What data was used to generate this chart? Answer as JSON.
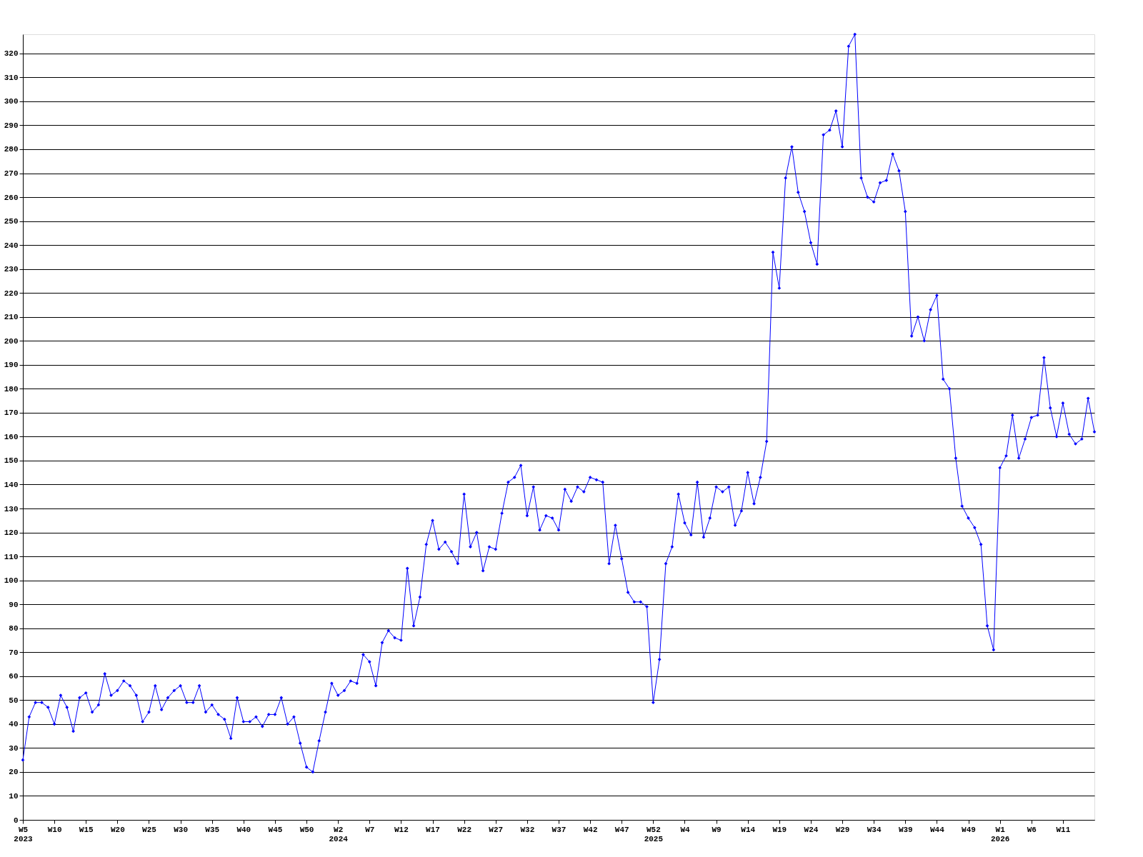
{
  "chart_data": {
    "type": "line",
    "categories": [
      "W5\n2023",
      null,
      null,
      null,
      null,
      "W10",
      null,
      null,
      null,
      null,
      "W15",
      null,
      null,
      null,
      null,
      "W20",
      null,
      null,
      null,
      null,
      "W25",
      null,
      null,
      null,
      null,
      "W30",
      null,
      null,
      null,
      null,
      "W35",
      null,
      null,
      null,
      null,
      "W40",
      null,
      null,
      null,
      null,
      "W45",
      null,
      null,
      null,
      null,
      "W50",
      null,
      null,
      null,
      null,
      "W2\n2024",
      null,
      null,
      null,
      null,
      "W7",
      null,
      null,
      null,
      null,
      "W12",
      null,
      null,
      null,
      null,
      "W17",
      null,
      null,
      null,
      null,
      "W22",
      null,
      null,
      null,
      null,
      "W27",
      null,
      null,
      null,
      null,
      "W32",
      null,
      null,
      null,
      null,
      "W37",
      null,
      null,
      null,
      null,
      "W42",
      null,
      null,
      null,
      null,
      "W47",
      null,
      null,
      null,
      null,
      "W52\n2025",
      null,
      null,
      null,
      null,
      "W4",
      null,
      null,
      null,
      null,
      "W9",
      null,
      null,
      null,
      null,
      "W14",
      null,
      null,
      null,
      null,
      "W19",
      null,
      null,
      null,
      null,
      "W24",
      null,
      null,
      null,
      null,
      "W29",
      null,
      null,
      null,
      null,
      "W34",
      null,
      null,
      null,
      null,
      "W39",
      null,
      null,
      null,
      null,
      "W44",
      null,
      null,
      null,
      null,
      "W49",
      null,
      null,
      null,
      null,
      "W1\n2026",
      null,
      null,
      null,
      null,
      "W6",
      null,
      null,
      null,
      null,
      "W11",
      null,
      null,
      null,
      null,
      null
    ],
    "series": [
      {
        "color": "#0000ff",
        "values": [
          25,
          43,
          49,
          49,
          47,
          40,
          52,
          47,
          37,
          51,
          53,
          45,
          48,
          61,
          52,
          54,
          58,
          56,
          52,
          41,
          45,
          56,
          46,
          51,
          54,
          56,
          49,
          49,
          56,
          45,
          48,
          44,
          42,
          34,
          51,
          41,
          41,
          43,
          39,
          44,
          44,
          51,
          40,
          43,
          32,
          22,
          20,
          33,
          45,
          57,
          52,
          54,
          58,
          57,
          69,
          66,
          56,
          74,
          79,
          76,
          75,
          105,
          81,
          93,
          115,
          125,
          113,
          116,
          112,
          107,
          136,
          114,
          120,
          104,
          114,
          113,
          128,
          141,
          143,
          148,
          127,
          139,
          121,
          127,
          126,
          121,
          138,
          133,
          139,
          137,
          143,
          142,
          141,
          107,
          123,
          109,
          95,
          91,
          91,
          89,
          49,
          67,
          107,
          114,
          136,
          124,
          119,
          141,
          118,
          126,
          139,
          137,
          139,
          123,
          129,
          145,
          132,
          143,
          158,
          237,
          222,
          268,
          281,
          262,
          254,
          241,
          232,
          286,
          288,
          296,
          281,
          323,
          328,
          268,
          260,
          258,
          266,
          267,
          278,
          271,
          254,
          202,
          210,
          200,
          213,
          219,
          184,
          180,
          151,
          131,
          126,
          122,
          115,
          81,
          71,
          147,
          152,
          169,
          151,
          159,
          168,
          169,
          193,
          172,
          160,
          174,
          161,
          157,
          159,
          176,
          162
        ]
      }
    ],
    "ylim": [
      0,
      328
    ],
    "yticks": [
      0,
      10,
      20,
      30,
      40,
      50,
      60,
      70,
      80,
      90,
      100,
      110,
      120,
      130,
      140,
      150,
      160,
      170,
      180,
      190,
      200,
      210,
      220,
      230,
      240,
      250,
      260,
      270,
      280,
      290,
      300,
      310,
      320
    ],
    "grid": "y",
    "marker": "diamond",
    "line_style": "solid"
  }
}
